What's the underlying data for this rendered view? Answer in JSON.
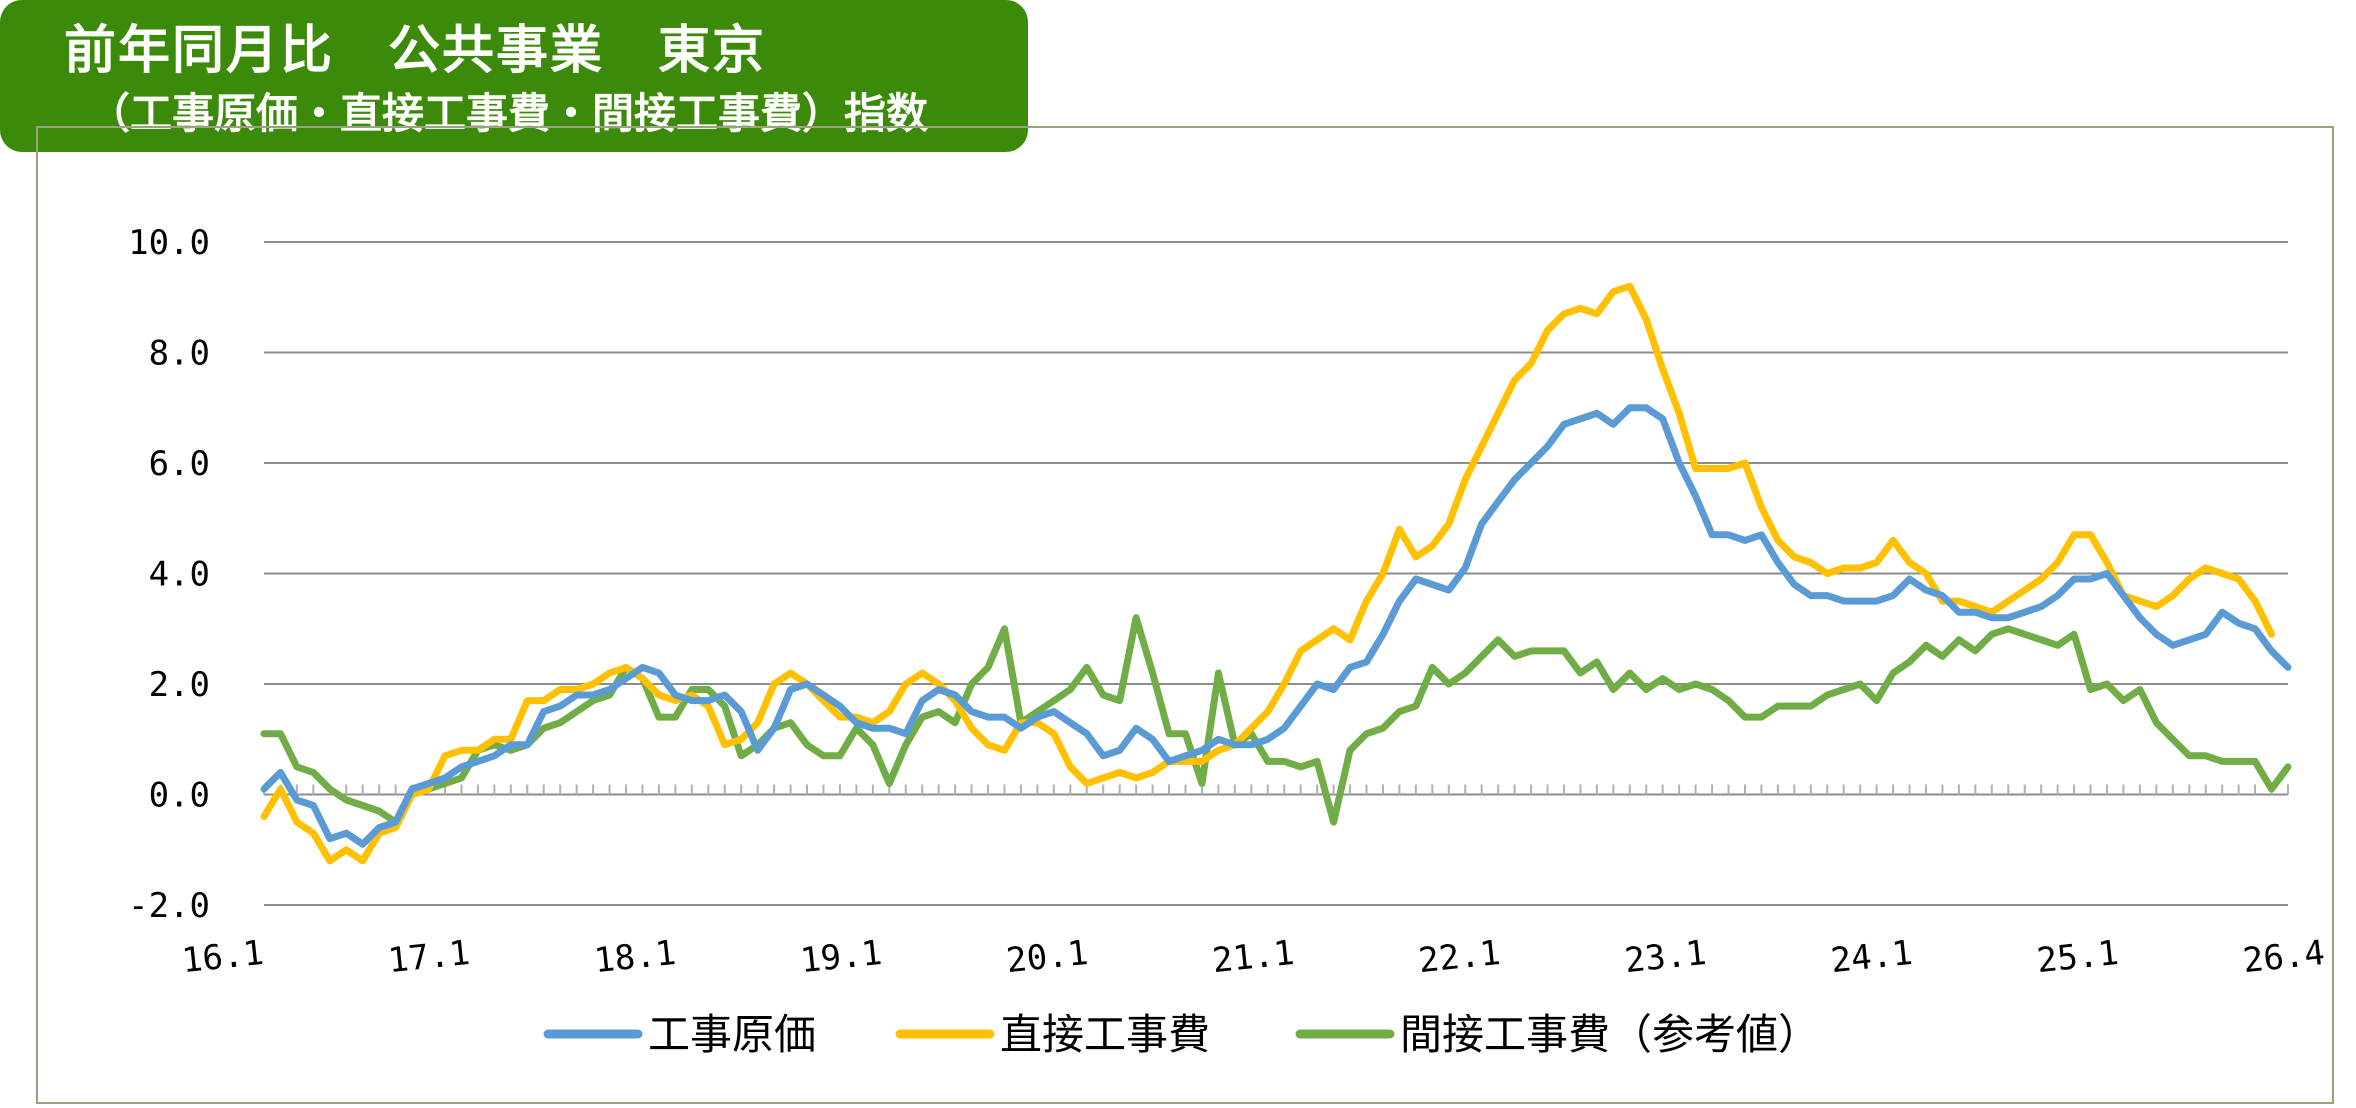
{
  "header": {
    "title_line1": "前年同月比　公共事業　東京",
    "title_line2": "（工事原価・直接工事費・間接工事費）指数"
  },
  "colors": {
    "header_bg": "#3c8a0a",
    "series": [
      "#5b9bd5",
      "#ffc000",
      "#70ad47"
    ],
    "negative_tick": "#e00000",
    "grid": "#8c8c8c"
  },
  "chart_data": {
    "type": "line",
    "ylim": [
      -2.0,
      10.0
    ],
    "y_ticks": [
      "10.0",
      "8.0",
      "6.0",
      "4.0",
      "2.0",
      "0.0",
      "-2.0"
    ],
    "x_ticks": [
      "16.1",
      "17.1",
      "18.1",
      "19.1",
      "20.1",
      "21.1",
      "22.1",
      "23.1",
      "24.1",
      "25.1",
      "26.4"
    ],
    "grid": true,
    "legend_position": "bottom",
    "series": [
      {
        "name": "工事原価",
        "values": [
          0.1,
          0.4,
          -0.1,
          -0.2,
          -0.8,
          -0.7,
          -0.9,
          -0.6,
          -0.5,
          0.1,
          0.2,
          0.3,
          0.5,
          0.6,
          0.7,
          0.9,
          0.9,
          1.5,
          1.6,
          1.8,
          1.8,
          1.9,
          2.1,
          2.3,
          2.2,
          1.8,
          1.7,
          1.7,
          1.8,
          1.5,
          0.8,
          1.2,
          1.9,
          2.0,
          1.8,
          1.6,
          1.3,
          1.2,
          1.2,
          1.1,
          1.7,
          1.9,
          1.8,
          1.5,
          1.4,
          1.4,
          1.2,
          1.4,
          1.5,
          1.3,
          1.1,
          0.7,
          0.8,
          1.2,
          1.0,
          0.6,
          0.7,
          0.8,
          1.0,
          0.9,
          0.9,
          1.0,
          1.2,
          1.6,
          2.0,
          1.9,
          2.3,
          2.4,
          2.9,
          3.5,
          3.9,
          3.8,
          3.7,
          4.1,
          4.9,
          5.3,
          5.7,
          6.0,
          6.3,
          6.7,
          6.8,
          6.9,
          6.7,
          7.0,
          7.0,
          6.8,
          6.0,
          5.4,
          4.7,
          4.7,
          4.6,
          4.7,
          4.2,
          3.8,
          3.6,
          3.6,
          3.5,
          3.5,
          3.5,
          3.6,
          3.9,
          3.7,
          3.6,
          3.3,
          3.3,
          3.2,
          3.2,
          3.3,
          3.4,
          3.6,
          3.9,
          3.9,
          4.0,
          3.6,
          3.2,
          2.9,
          2.7,
          2.8,
          2.9,
          3.3,
          3.1,
          3.0,
          2.6,
          2.3
        ]
      },
      {
        "name": "直接工事費",
        "values": [
          -0.4,
          0.1,
          -0.5,
          -0.7,
          -1.2,
          -1.0,
          -1.2,
          -0.7,
          -0.6,
          0.0,
          0.1,
          0.7,
          0.8,
          0.8,
          1.0,
          1.0,
          1.7,
          1.7,
          1.9,
          1.9,
          2.0,
          2.2,
          2.3,
          2.1,
          1.8,
          1.7,
          1.8,
          1.6,
          0.9,
          1.0,
          1.3,
          2.0,
          2.2,
          2.0,
          1.7,
          1.4,
          1.4,
          1.3,
          1.5,
          2.0,
          2.2,
          2.0,
          1.7,
          1.2,
          0.9,
          0.8,
          1.3,
          1.3,
          1.1,
          0.5,
          0.2,
          0.3,
          0.4,
          0.3,
          0.4,
          0.6,
          0.6,
          0.6,
          0.8,
          0.9,
          1.2,
          1.5,
          2.0,
          2.6,
          2.8,
          3.0,
          2.8,
          3.5,
          4.0,
          4.8,
          4.3,
          4.5,
          4.9,
          5.7,
          6.3,
          6.9,
          7.5,
          7.8,
          8.4,
          8.7,
          8.8,
          8.7,
          9.1,
          9.2,
          8.6,
          7.7,
          6.9,
          5.9,
          5.9,
          5.9,
          6.0,
          5.2,
          4.6,
          4.3,
          4.2,
          4.0,
          4.1,
          4.1,
          4.2,
          4.6,
          4.2,
          4.0,
          3.5,
          3.5,
          3.4,
          3.3,
          3.5,
          3.7,
          3.9,
          4.2,
          4.7,
          4.7,
          4.2,
          3.6,
          3.5,
          3.4,
          3.6,
          3.9,
          4.1,
          4.0,
          3.9,
          3.5,
          2.9
        ]
      },
      {
        "name": "間接工事費（参考値）",
        "values": [
          1.1,
          1.1,
          0.5,
          0.4,
          0.1,
          -0.1,
          -0.2,
          -0.3,
          -0.5,
          0.1,
          0.1,
          0.2,
          0.3,
          0.8,
          0.9,
          0.8,
          0.9,
          1.2,
          1.3,
          1.5,
          1.7,
          1.8,
          2.3,
          2.1,
          1.4,
          1.4,
          1.9,
          1.9,
          1.6,
          0.7,
          0.9,
          1.2,
          1.3,
          0.9,
          0.7,
          0.7,
          1.2,
          0.9,
          0.2,
          0.9,
          1.4,
          1.5,
          1.3,
          2.0,
          2.3,
          3.0,
          1.3,
          1.5,
          1.7,
          1.9,
          2.3,
          1.8,
          1.7,
          3.2,
          2.2,
          1.1,
          1.1,
          0.2,
          2.2,
          0.9,
          1.1,
          0.6,
          0.6,
          0.5,
          0.6,
          -0.5,
          0.8,
          1.1,
          1.2,
          1.5,
          1.6,
          2.3,
          2.0,
          2.2,
          2.5,
          2.8,
          2.5,
          2.6,
          2.6,
          2.6,
          2.2,
          2.4,
          1.9,
          2.2,
          1.9,
          2.1,
          1.9,
          2.0,
          1.9,
          1.7,
          1.4,
          1.4,
          1.6,
          1.6,
          1.6,
          1.8,
          1.9,
          2.0,
          1.7,
          2.2,
          2.4,
          2.7,
          2.5,
          2.8,
          2.6,
          2.9,
          3.0,
          2.9,
          2.8,
          2.7,
          2.9,
          1.9,
          2.0,
          1.7,
          1.9,
          1.3,
          1.0,
          0.7,
          0.7,
          0.6,
          0.6,
          0.6,
          0.1,
          0.5
        ]
      }
    ]
  }
}
